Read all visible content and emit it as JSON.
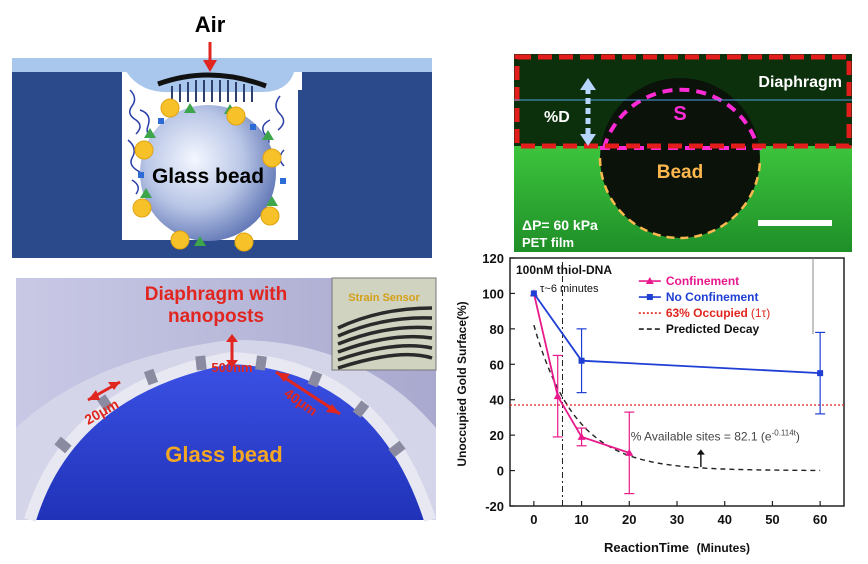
{
  "panel_a": {
    "air_label": "Air",
    "bead_label": "Glass bead"
  },
  "panel_b": {
    "title_line1": "Diaphragm with",
    "title_line2": "nanoposts",
    "dim_500": "500nm",
    "dim_20": "20μm",
    "dim_40": "40μm",
    "bead_label": "Glass bead",
    "inset_label": "Strain Sensor"
  },
  "panel_c": {
    "diaphragm_label": "Diaphragm",
    "d_label": "%D",
    "s_label": "S",
    "bead_label": "Bead",
    "pressure_label": "ΔP= 60 kPa",
    "film_label": "PET film"
  },
  "chart_data": {
    "type": "line",
    "ylabel": "Unoccupied Gold Surface(%)",
    "xlabel_main": "ReactionTime",
    "xlabel_unit": "(Minutes)",
    "xlim": [
      -5,
      65
    ],
    "ylim": [
      -20,
      120
    ],
    "xticks": [
      0,
      10,
      20,
      30,
      40,
      50,
      60
    ],
    "yticks": [
      120,
      100,
      80,
      60,
      40,
      20,
      0,
      -20
    ],
    "annotations": {
      "top_text": "100nM thiol-DNA",
      "tau_text": "τ~6 minutes",
      "formula": "% Available sites = 82.1 (e",
      "formula_exp": "-0.114t",
      "formula_close": ")"
    },
    "legend": {
      "position": "top-right",
      "entries": [
        {
          "name": "Confinement",
          "color": "#e8198b",
          "marker": "triangle"
        },
        {
          "name": "No Confinement",
          "color": "#1f3fd4",
          "marker": "square"
        },
        {
          "name": "63% Occupied",
          "suffix": "(1τ)",
          "color": "#e0261f",
          "style": "dotted"
        },
        {
          "name": "Predicted  Decay",
          "color": "#222222",
          "style": "dashed"
        }
      ]
    },
    "series": [
      {
        "name": "Confinement",
        "color": "#e8198b",
        "x": [
          0,
          5,
          10,
          20
        ],
        "y": [
          100,
          42,
          19,
          10
        ],
        "err": [
          0,
          23,
          5,
          23
        ]
      },
      {
        "name": "No Confinement",
        "color": "#1f3fd4",
        "x": [
          0,
          10,
          60
        ],
        "y": [
          100,
          62,
          55
        ],
        "err": [
          0,
          18,
          23
        ]
      }
    ],
    "reference_line_y": 37,
    "tau_x": 6,
    "decay": {
      "a": 82.1,
      "k": 0.114,
      "x_from": 0,
      "x_to": 60
    }
  },
  "colors": {
    "bead_blue": "#2f43d6",
    "panel_a_bg": "#2b4a8c",
    "fluor_green": "#3dc43d",
    "dashed_red": "#e31c1c",
    "magenta": "#ff2bd6",
    "orange_label": "#ffb84d"
  }
}
